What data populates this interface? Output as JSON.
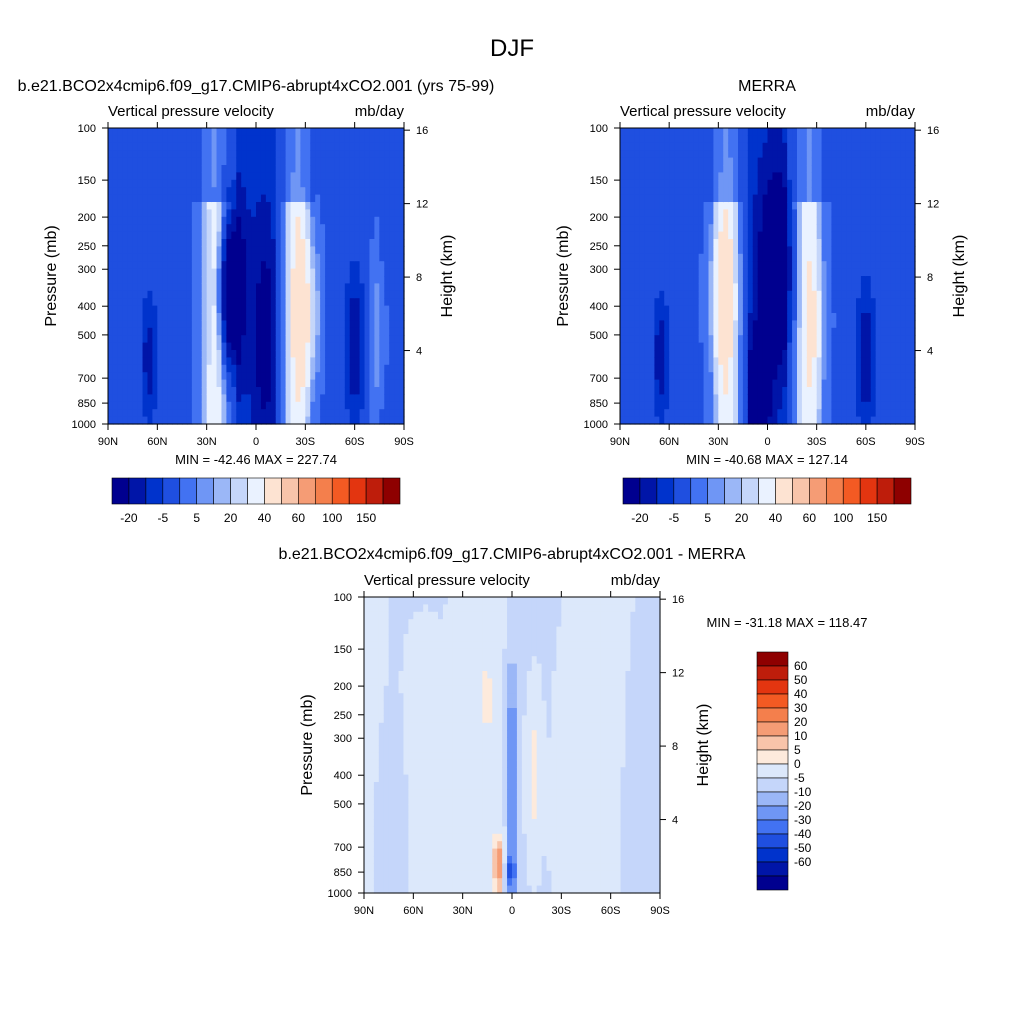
{
  "figure": {
    "title": "DJF"
  },
  "colors": {
    "abs_scale": [
      "#00008f",
      "#0015a8",
      "#0033cc",
      "#1f4fe0",
      "#4272f2",
      "#6f96f5",
      "#9bb7f7",
      "#c5d6fa",
      "#eaf2ff",
      "#fde3d2",
      "#f8c4aa",
      "#f59c75",
      "#f47f4c",
      "#f35a23",
      "#e33510",
      "#be1d0b",
      "#8e0000"
    ],
    "diff_scale": [
      "#00008f",
      "#0015a8",
      "#0033cc",
      "#1f4fe0",
      "#4272f2",
      "#6f96f5",
      "#9bb7f7",
      "#c5d6fa",
      "#dce8fb",
      "#fdeadc",
      "#f8c4aa",
      "#f59c75",
      "#f47f4c",
      "#f35a23",
      "#e33510",
      "#be1d0b",
      "#8e0000"
    ]
  },
  "chart_data": [
    {
      "id": "model",
      "type": "heatmap",
      "title": "b.e21.BCO2x4cmip6.f09_g17.CMIP6-abrupt4xCO2.001 (yrs 75-99)",
      "left_label": "Vertical pressure velocity",
      "right_label": "mb/day",
      "ylabel": "Pressure (mb)",
      "y2label": "Height (km)",
      "xticklabels": [
        "90N",
        "60N",
        "30N",
        "0",
        "30S",
        "60S",
        "90S"
      ],
      "xticks": [
        90,
        60,
        30,
        0,
        -30,
        -60,
        -90
      ],
      "xlim": [
        90,
        -90
      ],
      "yticks": [
        100,
        150,
        200,
        250,
        300,
        400,
        500,
        700,
        850,
        1000
      ],
      "ylim": [
        1000,
        100
      ],
      "yscale": "log",
      "y2ticks": [
        16,
        12,
        8,
        4
      ],
      "stats": "MIN = -42.46  MAX = 227.74",
      "min": -42.46,
      "max": 227.74,
      "colorbar_ticks": [
        "-20",
        "-5",
        "5",
        "20",
        "40",
        "60",
        "100",
        "150"
      ],
      "fields": [
        {
          "lat": 15,
          "p": 350,
          "w_lat": 7,
          "w_p": 0.55,
          "value": -30
        },
        {
          "lat": -30,
          "p": 420,
          "w_lat": 8,
          "w_p": 0.6,
          "value": 12
        },
        {
          "lat": -5,
          "p": 500,
          "w_lat": 6,
          "w_p": 0.7,
          "value": -12
        },
        {
          "lat": -60,
          "p": 550,
          "w_lat": 6,
          "w_p": 0.6,
          "value": -14
        },
        {
          "lat": 65,
          "p": 600,
          "w_lat": 5,
          "w_p": 0.5,
          "value": -12
        },
        {
          "lat": -75,
          "p": 500,
          "w_lat": 6,
          "w_p": 0.7,
          "value": 6
        }
      ]
    },
    {
      "id": "obs",
      "type": "heatmap",
      "title": "MERRA",
      "left_label": "Vertical pressure velocity",
      "right_label": "mb/day",
      "ylabel": "Pressure (mb)",
      "y2label": "Height (km)",
      "xticklabels": [
        "90N",
        "60N",
        "30N",
        "0",
        "30S",
        "60S",
        "90S"
      ],
      "xticks": [
        90,
        60,
        30,
        0,
        -30,
        -60,
        -90
      ],
      "xlim": [
        90,
        -90
      ],
      "yticks": [
        100,
        150,
        200,
        250,
        300,
        400,
        500,
        700,
        850,
        1000
      ],
      "ylim": [
        1000,
        100
      ],
      "yscale": "log",
      "y2ticks": [
        16,
        12,
        8,
        4
      ],
      "stats": "MIN = -40.68  MAX = 127.14",
      "min": -40.68,
      "max": 127.14,
      "colorbar_ticks": [
        "-20",
        "-5",
        "5",
        "20",
        "40",
        "60",
        "100",
        "150"
      ],
      "fields": [
        {
          "lat": -5,
          "p": 300,
          "w_lat": 8,
          "w_p": 0.6,
          "value": -30
        },
        {
          "lat": 28,
          "p": 380,
          "w_lat": 8,
          "w_p": 0.6,
          "value": 10
        },
        {
          "lat": -30,
          "p": 450,
          "w_lat": 7,
          "w_p": 0.6,
          "value": 6
        },
        {
          "lat": 5,
          "p": 750,
          "w_lat": 6,
          "w_p": 0.4,
          "value": -25
        },
        {
          "lat": 65,
          "p": 600,
          "w_lat": 5,
          "w_p": 0.5,
          "value": -13
        },
        {
          "lat": -60,
          "p": 600,
          "w_lat": 6,
          "w_p": 0.6,
          "value": -13
        }
      ]
    },
    {
      "id": "diff",
      "type": "heatmap",
      "title": "b.e21.BCO2x4cmip6.f09_g17.CMIP6-abrupt4xCO2.001 - MERRA",
      "left_label": "Vertical pressure velocity",
      "right_label": "mb/day",
      "ylabel": "Pressure (mb)",
      "y2label": "Height (km)",
      "xticklabels": [
        "90N",
        "60N",
        "30N",
        "0",
        "30S",
        "60S",
        "90S"
      ],
      "xticks": [
        90,
        60,
        30,
        0,
        -30,
        -60,
        -90
      ],
      "xlim": [
        90,
        -90
      ],
      "yticks": [
        100,
        150,
        200,
        250,
        300,
        400,
        500,
        700,
        850,
        1000
      ],
      "ylim": [
        1000,
        100
      ],
      "yscale": "log",
      "y2ticks": [
        16,
        12,
        8,
        4
      ],
      "stats": "MIN = -31.18  MAX = 118.47",
      "min": -31.18,
      "max": 118.47,
      "colorbar_ticks": [
        "60",
        "50",
        "40",
        "30",
        "20",
        "10",
        "5",
        "0",
        "-5",
        "-10",
        "-20",
        "-30",
        "-40",
        "-50",
        "-60"
      ],
      "fields": [
        {
          "lat": 0,
          "p": 400,
          "w_lat": 2.5,
          "w_p": 0.8,
          "value": -22
        },
        {
          "lat": 1,
          "p": 850,
          "w_lat": 3,
          "w_p": 0.15,
          "value": -30
        },
        {
          "lat": -14,
          "p": 400,
          "w_lat": 4,
          "w_p": 0.55,
          "value": 8
        },
        {
          "lat": 15,
          "p": 220,
          "w_lat": 3,
          "w_p": 0.25,
          "value": 10
        },
        {
          "lat": 8,
          "p": 800,
          "w_lat": 3,
          "w_p": 0.2,
          "value": 28
        },
        {
          "lat": 55,
          "p": 500,
          "w_lat": 12,
          "w_p": 1.2,
          "value": 2.5
        },
        {
          "lat": -35,
          "p": 550,
          "w_lat": 10,
          "w_p": 1.2,
          "value": 2.5
        },
        {
          "lat": 70,
          "p": 700,
          "w_lat": 10,
          "w_p": 0.8,
          "value": -2
        },
        {
          "lat": -75,
          "p": 650,
          "w_lat": 6,
          "w_p": 1.0,
          "value": -2
        }
      ]
    }
  ]
}
